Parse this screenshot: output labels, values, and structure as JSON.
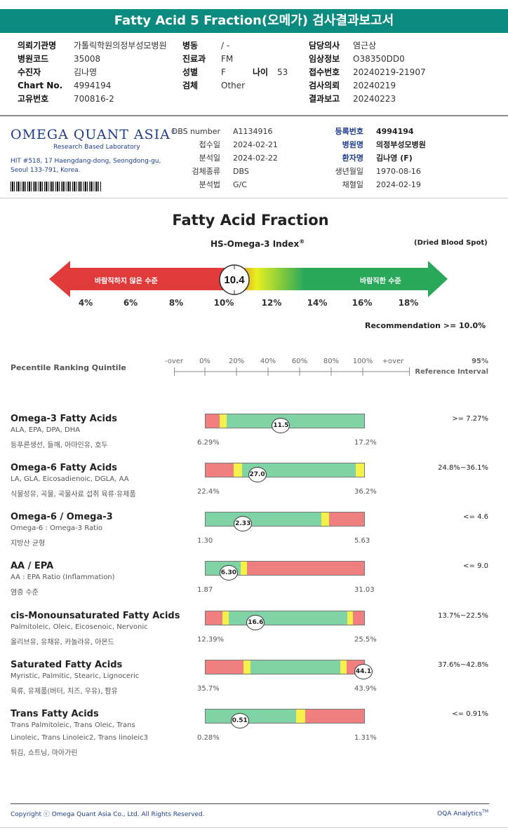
{
  "title": "Fatty Acid 5 Fraction(오메가) 검사결과보고서",
  "header": {
    "col1": [
      {
        "label": "의뢰기관명",
        "value": "가톨릭학원의정부성모병원"
      },
      {
        "label": "병원코드",
        "value": "35008"
      },
      {
        "label": "수진자",
        "value": "김나영"
      },
      {
        "label": "Chart No.",
        "value": "4994194"
      },
      {
        "label": "고유번호",
        "value": "700816-2"
      }
    ],
    "col2": [
      {
        "label": "병동",
        "value": "/ -"
      },
      {
        "label": "진료과",
        "value": "FM"
      },
      {
        "label": "성별",
        "value": "F"
      },
      {
        "label": "검체",
        "value": "Other"
      }
    ],
    "age_label": "나이",
    "age_value": "53",
    "col3": [
      {
        "label": "담당의사",
        "value": "염근상"
      },
      {
        "label": "임상정보",
        "value": "O38350DD0"
      },
      {
        "label": "접수번호",
        "value": "20240219-21907"
      },
      {
        "label": "검사의뢰",
        "value": "20240219"
      },
      {
        "label": "결과보고",
        "value": "20240223"
      }
    ]
  },
  "lab": {
    "logo": "OMEGA QUANT ASIA",
    "logo_mark": "®",
    "subtitle": "Research Based Laboratory",
    "address1": "HIT #518, 17 Haengdang-dong, Seongdong-gu,",
    "address2": "Seoul 133-791, Korea.",
    "mid": [
      {
        "label": "DBS number",
        "value": "A1134916"
      },
      {
        "label": "접수일",
        "value": "2024-02-21"
      },
      {
        "label": "분석일",
        "value": "2024-02-22"
      },
      {
        "label": "검체종류",
        "value": "DBS"
      },
      {
        "label": "분석법",
        "value": "G/C"
      }
    ],
    "right": [
      {
        "label": "등록번호",
        "value": "4994194",
        "bold": true
      },
      {
        "label": "병원명",
        "value": "의정부성모병원",
        "bold": true
      },
      {
        "label": "환자명",
        "value": "김나영 (F)",
        "bold": true
      },
      {
        "label": "생년월일",
        "value": "1970-08-16",
        "bold": false
      },
      {
        "label": "채혈일",
        "value": "2024-02-19",
        "bold": false
      }
    ]
  },
  "fraction": {
    "title": "Fatty Acid Fraction",
    "index_title": "HS-Omega-3 Index",
    "index_mark": "®",
    "dbs_note": "(Dried Blood Spot)",
    "value": "10.4",
    "value_num": 10.4,
    "left_label": "바람직하지 않은 수준",
    "right_label": "바람직한 수준",
    "ticks": [
      "4%",
      "6%",
      "8%",
      "10%",
      "12%",
      "14%",
      "16%",
      "18%"
    ],
    "recommendation": "Recommendation  >= 10.0%",
    "colors": {
      "red": "#e03a3a",
      "yellow": "#e8f020",
      "green": "#2aa85a"
    }
  },
  "quintile": {
    "label": "Pecentile Ranking Quintile",
    "scale": [
      "-over",
      "0%",
      "20%",
      "40%",
      "60%",
      "80%",
      "100%",
      "+over"
    ],
    "ref_top": "95%",
    "ref_bottom": "Reference Interval"
  },
  "rows": [
    {
      "name": "Omega-3 Fatty Acids",
      "sub": "ALA, EPA, DPA, DHA",
      "sub2": "",
      "kor": "등푸른생선, 들깨, 아마인유, 호두",
      "ref": ">= 7.27%",
      "min": "6.29%",
      "max": "17.2%",
      "value": "11.5",
      "value_frac": 0.48,
      "segments": [
        {
          "c": "r",
          "w": 0.09
        },
        {
          "c": "y",
          "w": 0.045
        },
        {
          "c": "g",
          "w": 0.865
        }
      ]
    },
    {
      "name": "Omega-6 Fatty Acids",
      "sub": "LA, GLA, Eicosadienoic, DGLA, AA",
      "sub2": "",
      "kor": "식물성유, 곡물, 곡물사료 섭취 육류·유제품",
      "ref": "24.8%~36.1%",
      "min": "22.4%",
      "max": "36.2%",
      "value": "27.0",
      "value_frac": 0.33,
      "segments": [
        {
          "c": "r",
          "w": 0.175
        },
        {
          "c": "y",
          "w": 0.055
        },
        {
          "c": "g",
          "w": 0.715
        },
        {
          "c": "y",
          "w": 0.055
        }
      ]
    },
    {
      "name": "Omega-6 / Omega-3",
      "sub": "Omega-6 : Omega-3 Ratio",
      "sub2": "",
      "kor": "지방산 균형",
      "ref": "<= 4.6",
      "min": "1.30",
      "max": "5.63",
      "value": "2.33",
      "value_frac": 0.24,
      "segments": [
        {
          "c": "g",
          "w": 0.73
        },
        {
          "c": "y",
          "w": 0.05
        },
        {
          "c": "r",
          "w": 0.22
        }
      ]
    },
    {
      "name": "AA / EPA",
      "sub": "AA : EPA Ratio (Inflammation)",
      "sub2": "",
      "kor": "염증 수준",
      "ref": "<= 9.0",
      "min": "1.87",
      "max": "31.03",
      "value": "6.30",
      "value_frac": 0.15,
      "segments": [
        {
          "c": "g",
          "w": 0.22
        },
        {
          "c": "y",
          "w": 0.04
        },
        {
          "c": "r",
          "w": 0.74
        }
      ]
    },
    {
      "name": "cis-Monounsaturated Fatty Acids",
      "sub": "Palmitoleic, Oleic, Eicosenoic, Nervonic",
      "sub2": "",
      "kor": "올리브유, 유채유, 카놀라유, 아몬드",
      "ref": "13.7%~22.5%",
      "min": "12.39%",
      "max": "25.5%",
      "value": "16.6",
      "value_frac": 0.32,
      "segments": [
        {
          "c": "r",
          "w": 0.105
        },
        {
          "c": "y",
          "w": 0.04
        },
        {
          "c": "g",
          "w": 0.75
        },
        {
          "c": "y",
          "w": 0.035
        },
        {
          "c": "r",
          "w": 0.07
        }
      ]
    },
    {
      "name": "Saturated Fatty Acids",
      "sub": "Myristic, Palmitic, Stearic, Lignoceric",
      "sub2": "",
      "kor": "육류, 유제품(버터, 치즈, 우유), 팜유",
      "ref": "37.6%~42.8%",
      "min": "35.7%",
      "max": "43.9%",
      "value": "44.1",
      "value_frac": 1.0,
      "segments": [
        {
          "c": "r",
          "w": 0.24
        },
        {
          "c": "y",
          "w": 0.045
        },
        {
          "c": "g",
          "w": 0.565
        },
        {
          "c": "y",
          "w": 0.04
        },
        {
          "c": "r",
          "w": 0.11
        }
      ]
    },
    {
      "name": "Trans Fatty Acids",
      "sub": "Trans Palmitoleic, Trans Oleic, Trans",
      "sub2": "Linoleic, Trans Linoleic2, Trans linoleic3",
      "kor": "튀김, 쇼트닝, 마아가린",
      "ref": "<= 0.91%",
      "min": "0.28%",
      "max": "1.31%",
      "value": "0.51",
      "value_frac": 0.22,
      "segments": [
        {
          "c": "g",
          "w": 0.57
        },
        {
          "c": "y",
          "w": 0.06
        },
        {
          "c": "r",
          "w": 0.37
        }
      ]
    }
  ],
  "footer": {
    "copyright": "Copyright ⓒ Omega Quant Asia Co., Ltd.  All Rights Reserved.",
    "brand": "OQA Analytics",
    "brand_mark": "TM"
  }
}
